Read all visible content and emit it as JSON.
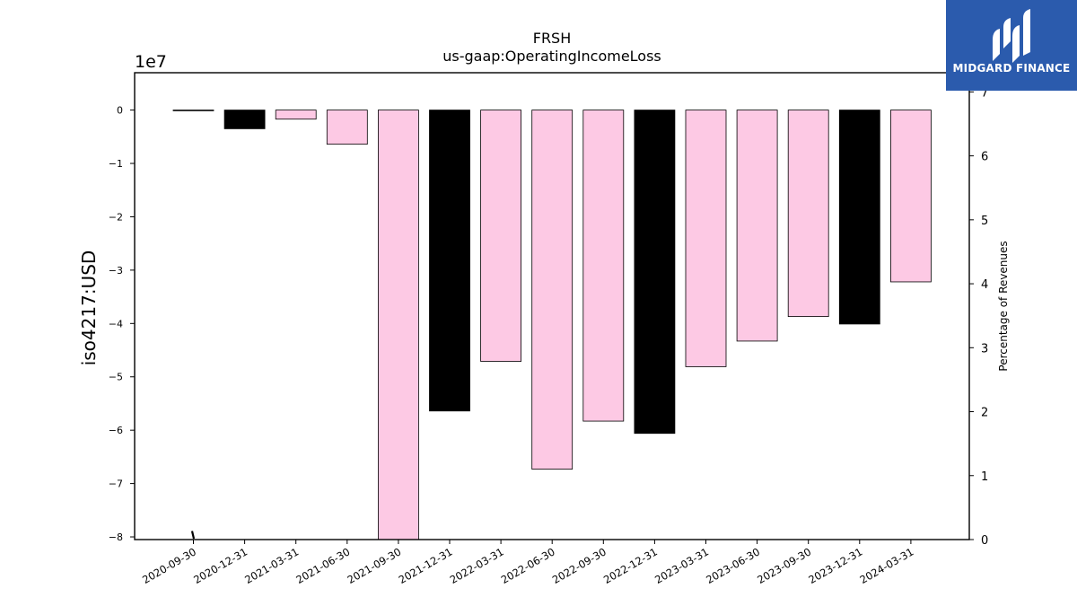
{
  "chart_data": {
    "type": "bar",
    "title": "FRSH",
    "subtitle": "us-gaap:OperatingIncomeLoss",
    "ylabel": "iso4217:USD",
    "y_offset_label": "1e7",
    "y2label": "Percentage of Revenues",
    "ylim": [
      -8.05,
      0.7
    ],
    "y2lim": [
      0,
      7.3
    ],
    "yticks": [
      "0",
      "−1",
      "−2",
      "−3",
      "−4",
      "−5",
      "−6",
      "−7",
      "−8"
    ],
    "y2ticks": [
      "0",
      "1",
      "2",
      "3",
      "4",
      "5",
      "6",
      "7"
    ],
    "categories": [
      "2020-09-30",
      "2020-12-31",
      "2021-03-31",
      "2021-06-30",
      "2021-09-30",
      "2021-12-31",
      "2022-03-31",
      "2022-06-30",
      "2022-09-30",
      "2022-12-31",
      "2023-03-31",
      "2023-06-30",
      "2023-09-30",
      "2023-12-31",
      "2024-03-31"
    ],
    "values": [
      -0.01,
      -0.35,
      -0.17,
      -0.64,
      -8.1,
      -5.64,
      -4.71,
      -6.73,
      -5.83,
      -6.06,
      -4.81,
      -4.33,
      -3.87,
      -4.01,
      -3.22
    ],
    "bar_colors": [
      "#000000",
      "#000000",
      "#fdc9e4",
      "#fdc9e4",
      "#fdc9e4",
      "#000000",
      "#fdc9e4",
      "#fdc9e4",
      "#fdc9e4",
      "#000000",
      "#fdc9e4",
      "#fdc9e4",
      "#fdc9e4",
      "#000000",
      "#fdc9e4"
    ],
    "secondary_series": {
      "x": [
        "2020-09-30"
      ],
      "y": [
        0.05
      ]
    },
    "grid": false
  },
  "brand": {
    "name": "MIDGARD FINANCE"
  }
}
